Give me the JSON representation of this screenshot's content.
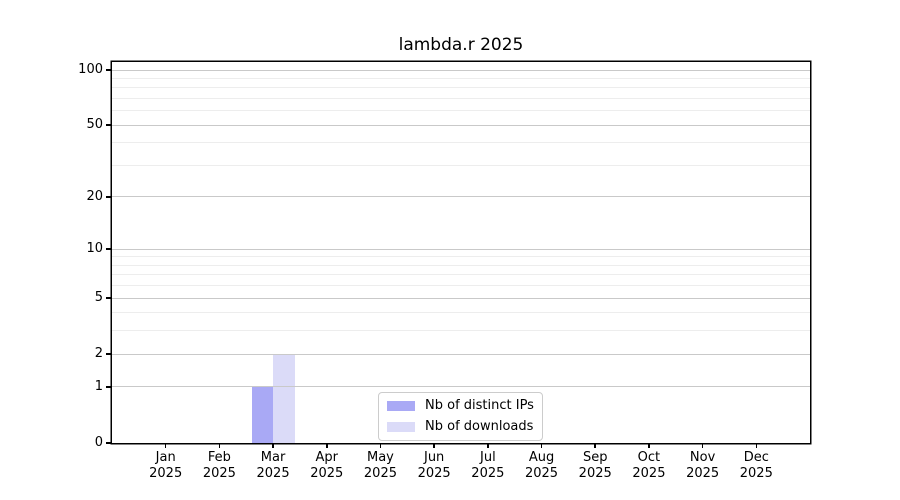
{
  "title": "lambda.r 2025",
  "colors": {
    "spine": "#000000",
    "grid_major": "#c9c9c9",
    "grid_minor": "#ededed",
    "text": "#000000",
    "legend_border": "#cccccc",
    "bar_distinct_ips": "#a9a9f5",
    "bar_downloads": "#dbdbf8"
  },
  "chart_data": {
    "type": "bar",
    "title": "lambda.r 2025",
    "categories": [
      "Jan",
      "Feb",
      "Mar",
      "Apr",
      "May",
      "Jun",
      "Jul",
      "Aug",
      "Sep",
      "Oct",
      "Nov",
      "Dec"
    ],
    "x_second_line": "2025",
    "series": [
      {
        "name": "Nb of distinct IPs",
        "color": "#a9a9f5",
        "values": [
          0,
          0,
          1,
          0,
          0,
          0,
          0,
          0,
          0,
          0,
          0,
          0
        ]
      },
      {
        "name": "Nb of downloads",
        "color": "#dbdbf8",
        "values": [
          0,
          0,
          2,
          0,
          0,
          0,
          0,
          0,
          0,
          0,
          0,
          0
        ]
      }
    ],
    "xlabel": "",
    "ylabel": "",
    "yscale": "log1p",
    "yticks": [
      0,
      1,
      2,
      5,
      10,
      20,
      50,
      100
    ],
    "yminor_gridlines": [
      3,
      4,
      6,
      7,
      8,
      9,
      30,
      40,
      60,
      70,
      80,
      90
    ],
    "ylim": [
      0,
      110
    ],
    "grid": "horizontal",
    "grid_above_bars": true,
    "legend_position": "inside-bottom-center",
    "legend": {
      "items": [
        {
          "label": "Nb of distinct IPs",
          "color": "#a9a9f5"
        },
        {
          "label": "Nb of downloads",
          "color": "#dbdbf8"
        }
      ]
    }
  }
}
